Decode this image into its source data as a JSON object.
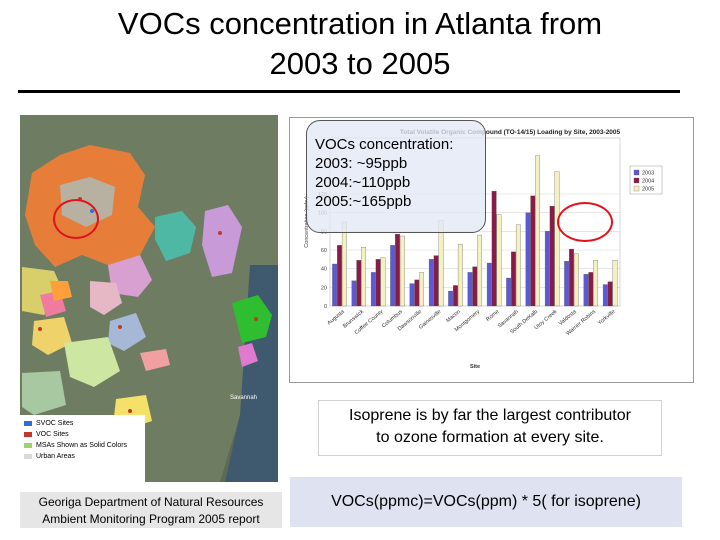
{
  "header": {
    "title_line1": "VOCs concentration in Atlanta from",
    "title_line2": "2003 to 2005"
  },
  "map": {
    "legend": [
      {
        "label": "SVOC Sites",
        "color": "#2f6fd6"
      },
      {
        "label": "VOC Sites",
        "color": "#c0392b"
      },
      {
        "label": "MSAs Shown as Solid Colors",
        "color": "#9fd26a"
      },
      {
        "label": "Urban Areas",
        "color": "#d9d9d9"
      }
    ],
    "city_labels": [
      "Savannah"
    ]
  },
  "chart_data": {
    "type": "bar",
    "title": "Total Volatile Organic Compound (TO-14/15) Loading by Site, 2003-2005",
    "xlabel": "Site",
    "ylabel": "Concentration (ppbv)",
    "ylim": [
      0,
      180
    ],
    "yticks": [
      0,
      20,
      40,
      60,
      80,
      100,
      120
    ],
    "legend_position": "top-right",
    "categories": [
      "Augusta",
      "Brunswick",
      "Coffee County",
      "Columbus",
      "Dawsonville",
      "Gainesville",
      "Macon",
      "Montgomery",
      "Rome",
      "Savannah",
      "South DeKalb",
      "Utoy Creek",
      "Valdosta",
      "Warner Robins",
      "Yorkville"
    ],
    "series": [
      {
        "name": "2003",
        "color": "#5a5ad6",
        "values": [
          45,
          27,
          36,
          65,
          24,
          50,
          16,
          36,
          46,
          30,
          100,
          80,
          48,
          34,
          23
        ]
      },
      {
        "name": "2004",
        "color": "#8a1a4a",
        "values": [
          65,
          49,
          50,
          77,
          28,
          54,
          22,
          42,
          123,
          58,
          118,
          107,
          61,
          36,
          26
        ]
      },
      {
        "name": "2005",
        "color": "#f5f0c0",
        "values": [
          90,
          63,
          52,
          75,
          36,
          92,
          66,
          76,
          98,
          87,
          161,
          144,
          56,
          49,
          49
        ]
      }
    ]
  },
  "voc_box": {
    "heading": "VOCs concentration:",
    "line_2003": "2003: ~95ppb",
    "line_2004": "2004:~110ppb",
    "line_2005": "2005:~165ppb"
  },
  "isoprene_note": {
    "line1": "Isoprene is by far the largest contributor",
    "line2": "to ozone formation at every site."
  },
  "formula": "VOCs(ppmc)=VOCs(ppm) * 5( for isoprene)",
  "credit": {
    "line1": "Georiga Department of Natural Resources",
    "line2": "Ambient Monitoring Program 2005 report"
  },
  "colors": {
    "highlight_ellipse": "#e0141a",
    "formula_bg": "#dfe3f1"
  }
}
